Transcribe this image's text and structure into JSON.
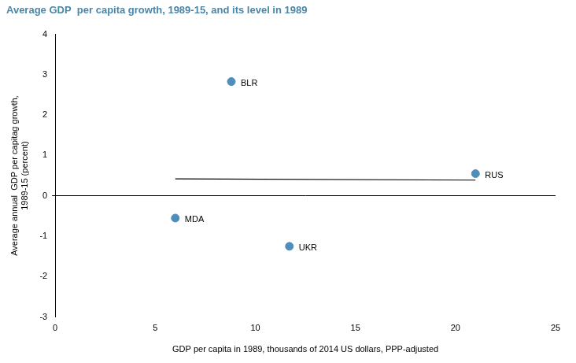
{
  "chart_data": {
    "type": "scatter",
    "title": "Average GDP  per capita growth, 1989-15, and its level in 1989",
    "title_color": "#4a86a8",
    "x_label": "GDP per capita in 1989, thousands of 2014 US dollars, PPP-adjusted",
    "y_label": [
      "Average annual  GDP per capitag growth,",
      "1989-15 (percent)"
    ],
    "x": [
      8.8,
      21.0,
      6.0,
      11.7
    ],
    "values": [
      2.83,
      0.55,
      -0.55,
      -1.25
    ],
    "point_labels": [
      "BLR",
      "RUS",
      "MDA",
      "UKR"
    ],
    "color": "#4f8dba",
    "marker": "circle",
    "trend_line": {
      "type": "line",
      "x": [
        6.0,
        21.0
      ],
      "values": [
        0.42,
        0.39
      ],
      "color": "#000000",
      "line_style": "solid"
    },
    "xlim": [
      0,
      25
    ],
    "xticks": [
      0,
      5,
      10,
      15,
      20,
      25
    ],
    "ylim": [
      -3,
      4
    ],
    "yticks": [
      -3,
      -2,
      -1,
      0,
      1,
      2,
      3,
      4
    ],
    "grid": false
  }
}
